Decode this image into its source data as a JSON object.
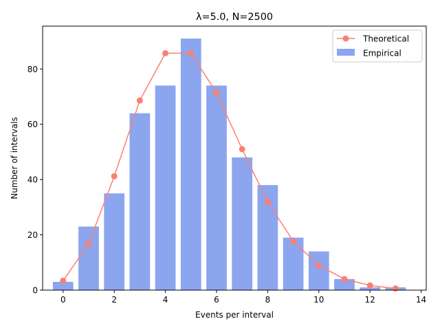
{
  "chart_data": {
    "type": "bar",
    "title": "λ=5.0, N=2500",
    "xlabel": "Events per interval",
    "ylabel": "Number of intervals",
    "xlim": [
      -0.8,
      14.2
    ],
    "ylim": [
      0,
      95.5
    ],
    "xticks": [
      0,
      2,
      4,
      6,
      8,
      10,
      12,
      14
    ],
    "yticks": [
      0,
      20,
      40,
      60,
      80
    ],
    "grid": false,
    "legend_position": "top-right",
    "x": [
      0,
      1,
      2,
      3,
      4,
      5,
      6,
      7,
      8,
      9,
      10,
      11,
      12,
      13
    ],
    "series": [
      {
        "name": "Theoretical",
        "type": "line",
        "color": "#fa8072",
        "values": [
          3.4,
          16.8,
          41.2,
          68.6,
          85.7,
          85.7,
          71.4,
          51.0,
          31.9,
          17.7,
          8.9,
          4.0,
          1.7,
          0.6
        ]
      },
      {
        "name": "Empirical",
        "type": "bar",
        "color": "#8ca5ef",
        "values": [
          3,
          23,
          35,
          64,
          74,
          91,
          74,
          48,
          38,
          19,
          14,
          4,
          1,
          1
        ]
      }
    ]
  }
}
